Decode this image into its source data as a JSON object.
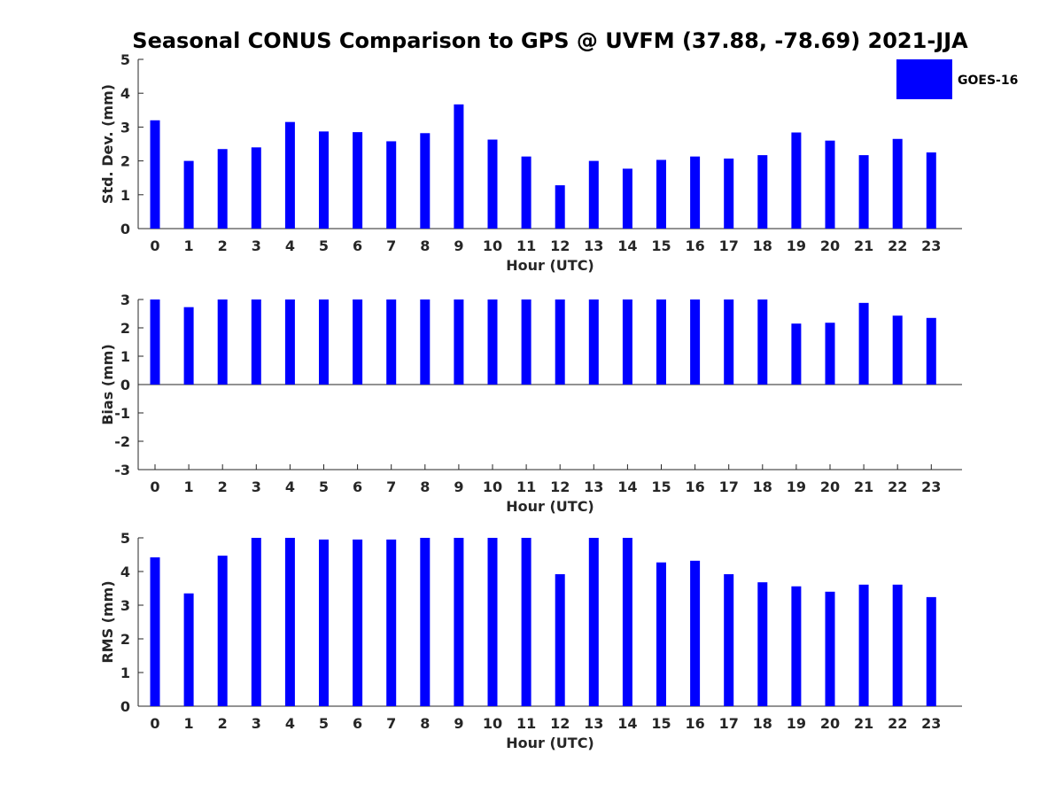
{
  "chart_data": {
    "type": "bar",
    "title": "Seasonal CONUS Comparison to GPS @ UVFM (37.88, -78.69) 2021-JJA",
    "legend": {
      "placement": "top-right",
      "entries": [
        {
          "label": "GOES-16",
          "color": "#0000ff"
        }
      ]
    },
    "categories": [
      "0",
      "1",
      "2",
      "3",
      "4",
      "5",
      "6",
      "7",
      "8",
      "9",
      "10",
      "11",
      "12",
      "13",
      "14",
      "15",
      "16",
      "17",
      "18",
      "19",
      "20",
      "21",
      "22",
      "23"
    ],
    "panels": [
      {
        "name": "std-dev",
        "xlabel": "Hour (UTC)",
        "ylabel": "Std. Dev. (mm)",
        "ylim": [
          0,
          5
        ],
        "yticks": [
          "0",
          "1",
          "2",
          "3",
          "4",
          "5"
        ],
        "series": [
          {
            "name": "GOES-16",
            "color": "#0000ff",
            "values": [
              3.2,
              2.0,
              2.35,
              2.4,
              3.15,
              2.87,
              2.85,
              2.58,
              2.82,
              3.67,
              2.63,
              2.13,
              1.28,
              2.0,
              1.77,
              2.03,
              2.13,
              2.07,
              2.17,
              2.84,
              2.6,
              2.17,
              2.65,
              2.25
            ]
          }
        ]
      },
      {
        "name": "bias",
        "xlabel": "Hour (UTC)",
        "ylabel": "Bias (mm)",
        "ylim": [
          -3,
          3
        ],
        "yticks": [
          "-3",
          "-2",
          "-1",
          "0",
          "1",
          "2",
          "3"
        ],
        "series": [
          {
            "name": "GOES-16",
            "color": "#0000ff",
            "values": [
              3,
              2.73,
              3,
              3,
              3,
              3,
              3,
              3,
              3,
              3,
              3,
              3,
              3,
              3,
              3,
              3,
              3,
              3,
              3,
              2.15,
              2.18,
              2.88,
              2.43,
              2.35
            ]
          }
        ]
      },
      {
        "name": "rms",
        "xlabel": "Hour (UTC)",
        "ylabel": "RMS (mm)",
        "ylim": [
          0,
          5
        ],
        "yticks": [
          "0",
          "1",
          "2",
          "3",
          "4",
          "5"
        ],
        "series": [
          {
            "name": "GOES-16",
            "color": "#0000ff",
            "values": [
              4.42,
              3.35,
              4.47,
              5,
              5,
              4.95,
              4.95,
              4.95,
              5,
              5,
              5,
              5,
              3.92,
              5,
              5,
              4.27,
              4.32,
              3.92,
              3.68,
              3.56,
              3.4,
              3.61,
              3.61,
              3.24
            ]
          }
        ]
      }
    ]
  }
}
